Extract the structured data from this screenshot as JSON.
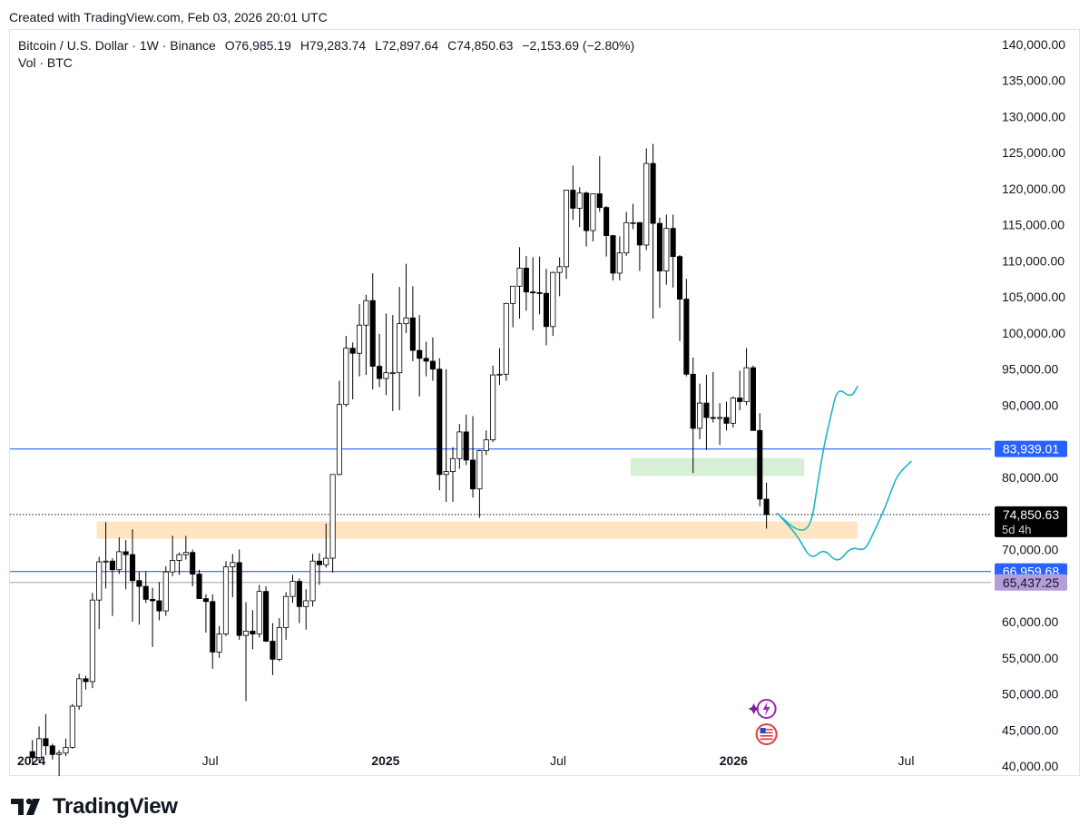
{
  "header": {
    "created_text": "Created with TradingView.com, Feb 03, 2026 20:01 UTC"
  },
  "legend": {
    "symbol": "Bitcoin / U.S. Dollar · 1W · Binance",
    "open": "O76,985.19",
    "high": "H79,283.74",
    "low": "L72,897.64",
    "close": "C74,850.63",
    "change": "−2,153.69 (−2.80%)",
    "volume_label": "Vol · BTC"
  },
  "footer": {
    "brand": "TradingView"
  },
  "colors": {
    "up_body": "#ffffff",
    "down_body": "#000000",
    "candle_outline": "#000000",
    "horizontal_line": "#2962ff",
    "grey_line": "#b2b5be",
    "orange_zone": "#ffe5c2",
    "green_zone": "#d6efd6",
    "projection": "#1ab6c8",
    "last_price_bg": "#000000",
    "level_blue_bg": "#2962ff",
    "level_purple_bg": "#b39ddb"
  },
  "chart_data": {
    "type": "candlestick",
    "title": "Bitcoin / U.S. Dollar · 1W · Binance",
    "y_axis": {
      "ticks": [
        140000,
        135000,
        130000,
        125000,
        120000,
        115000,
        110000,
        105000,
        100000,
        95000,
        90000,
        80000,
        70000,
        60000,
        55000,
        50000,
        45000,
        40000
      ],
      "tick_labels": [
        "140,000.00",
        "135,000.00",
        "130,000.00",
        "125,000.00",
        "120,000.00",
        "115,000.00",
        "110,000.00",
        "105,000.00",
        "100,000.00",
        "95,000.00",
        "90,000.00",
        "80,000.00",
        "70,000.00",
        "60,000.00",
        "55,000.00",
        "50,000.00",
        "45,000.00",
        "40,000.00"
      ],
      "ylim": [
        39000,
        142000
      ]
    },
    "x_axis": {
      "labels": [
        {
          "date": "2024-01-01",
          "text": "2024",
          "bold": true
        },
        {
          "date": "2024-07-01",
          "text": "Jul",
          "bold": false
        },
        {
          "date": "2025-01-01",
          "text": "2025",
          "bold": true
        },
        {
          "date": "2025-07-01",
          "text": "Jul",
          "bold": false
        },
        {
          "date": "2026-01-01",
          "text": "2026",
          "bold": true
        },
        {
          "date": "2026-07-01",
          "text": "Jul",
          "bold": false
        }
      ],
      "xlim": [
        "2023-12-04",
        "2026-09-28"
      ]
    },
    "price_levels": [
      {
        "price": 83939.01,
        "label": "83,939.01",
        "style": "blue-line"
      },
      {
        "price": 66959.68,
        "label": "66,959.68",
        "style": "blue-line"
      },
      {
        "price": 65437.25,
        "label": "65,437.25",
        "style": "grey-line"
      }
    ],
    "last_price": {
      "price": 74850.63,
      "label": "74,850.63",
      "countdown": "5d 4h"
    },
    "zones": [
      {
        "kind": "orange-support",
        "date_from": "2024-03-04",
        "date_to": "2026-05-11",
        "price_low": 71500,
        "price_high": 73900
      },
      {
        "kind": "green-resistance",
        "date_from": "2025-09-15",
        "date_to": "2026-03-16",
        "price_low": 80200,
        "price_high": 82700
      }
    ],
    "projections": [
      {
        "name": "path-a",
        "points": [
          [
            "2026-02-16",
            75000
          ],
          [
            "2026-03-09",
            72500
          ],
          [
            "2026-03-23",
            73000
          ],
          [
            "2026-03-30",
            79000
          ],
          [
            "2026-04-06",
            84500
          ],
          [
            "2026-04-13",
            88500
          ],
          [
            "2026-04-20",
            92500
          ],
          [
            "2026-05-04",
            91000
          ],
          [
            "2026-05-11",
            92600
          ]
        ]
      },
      {
        "name": "path-b",
        "points": [
          [
            "2026-02-16",
            75000
          ],
          [
            "2026-03-09",
            72000
          ],
          [
            "2026-03-23",
            68500
          ],
          [
            "2026-04-06",
            70200
          ],
          [
            "2026-04-20",
            68000
          ],
          [
            "2026-05-04",
            70400
          ],
          [
            "2026-05-18",
            69800
          ],
          [
            "2026-05-25",
            71500
          ],
          [
            "2026-06-08",
            75500
          ],
          [
            "2026-06-15",
            78000
          ],
          [
            "2026-06-22",
            80400
          ],
          [
            "2026-07-06",
            82200
          ]
        ]
      }
    ],
    "series": [
      {
        "name": "BTCUSD",
        "candles": [
          [
            "2023-12-25",
            42000,
            43600,
            40200,
            41200
          ],
          [
            "2024-01-01",
            41200,
            45500,
            40600,
            43800
          ],
          [
            "2024-01-08",
            43800,
            47200,
            41500,
            42800
          ],
          [
            "2024-01-15",
            42800,
            43100,
            40900,
            41600
          ],
          [
            "2024-01-22",
            41600,
            42200,
            38600,
            41800
          ],
          [
            "2024-01-29",
            41800,
            43800,
            41400,
            42600
          ],
          [
            "2024-02-05",
            42600,
            48600,
            42400,
            48300
          ],
          [
            "2024-02-12",
            48300,
            52800,
            47800,
            52100
          ],
          [
            "2024-02-19",
            52100,
            52500,
            50600,
            51700
          ],
          [
            "2024-02-26",
            51700,
            64000,
            50800,
            63000
          ],
          [
            "2024-03-04",
            63000,
            69000,
            59000,
            68300
          ],
          [
            "2024-03-11",
            68300,
            73800,
            64600,
            68400
          ],
          [
            "2024-03-18",
            68400,
            68800,
            60800,
            67200
          ],
          [
            "2024-03-25",
            67200,
            71700,
            66600,
            69700
          ],
          [
            "2024-04-01",
            69700,
            71300,
            64500,
            69300
          ],
          [
            "2024-04-08",
            69300,
            72800,
            60000,
            65700
          ],
          [
            "2024-04-15",
            65700,
            66900,
            59600,
            64900
          ],
          [
            "2024-04-22",
            64900,
            67000,
            62600,
            63100
          ],
          [
            "2024-04-29",
            63100,
            64700,
            56500,
            62900
          ],
          [
            "2024-05-06",
            62900,
            65500,
            60200,
            61500
          ],
          [
            "2024-05-13",
            61500,
            67700,
            60800,
            66900
          ],
          [
            "2024-05-20",
            66900,
            71900,
            66300,
            68500
          ],
          [
            "2024-05-27",
            68500,
            69600,
            66500,
            69300
          ],
          [
            "2024-06-03",
            69300,
            71900,
            68600,
            69600
          ],
          [
            "2024-06-10",
            69600,
            70000,
            64900,
            66600
          ],
          [
            "2024-06-17",
            66600,
            67200,
            63300,
            63200
          ],
          [
            "2024-06-24",
            63200,
            63800,
            58500,
            62800
          ],
          [
            "2024-07-01",
            62800,
            63800,
            53500,
            55800
          ],
          [
            "2024-07-08",
            55800,
            59400,
            55000,
            58300
          ],
          [
            "2024-07-15",
            58300,
            68400,
            58000,
            67600
          ],
          [
            "2024-07-22",
            67600,
            69400,
            63400,
            68200
          ],
          [
            "2024-07-29",
            68200,
            70000,
            57500,
            58100
          ],
          [
            "2024-08-05",
            58100,
            62700,
            49000,
            58700
          ],
          [
            "2024-08-12",
            58700,
            61600,
            56200,
            58300
          ],
          [
            "2024-08-19",
            58300,
            65100,
            57800,
            64200
          ],
          [
            "2024-08-26",
            64200,
            64900,
            57200,
            57300
          ],
          [
            "2024-09-02",
            57300,
            59800,
            52600,
            54800
          ],
          [
            "2024-09-09",
            54800,
            60500,
            54500,
            59200
          ],
          [
            "2024-09-16",
            59200,
            64100,
            57500,
            63500
          ],
          [
            "2024-09-23",
            63500,
            66500,
            62600,
            65600
          ],
          [
            "2024-09-30",
            65600,
            66000,
            59800,
            62100
          ],
          [
            "2024-10-07",
            62100,
            64500,
            58900,
            62900
          ],
          [
            "2024-10-14",
            62900,
            69400,
            62100,
            68400
          ],
          [
            "2024-10-21",
            68400,
            69500,
            65100,
            67900
          ],
          [
            "2024-10-28",
            67900,
            73600,
            67500,
            68800
          ],
          [
            "2024-11-04",
            68800,
            80200,
            66800,
            80400
          ],
          [
            "2024-11-11",
            80400,
            93400,
            80300,
            90100
          ],
          [
            "2024-11-18",
            90100,
            99600,
            89800,
            97900
          ],
          [
            "2024-11-25",
            97900,
            98700,
            90800,
            97200
          ],
          [
            "2024-12-02",
            97200,
            104000,
            94000,
            101100
          ],
          [
            "2024-12-09",
            101100,
            105300,
            94200,
            104500
          ],
          [
            "2024-12-16",
            104500,
            108300,
            92200,
            95400
          ],
          [
            "2024-12-23",
            95400,
            99900,
            92500,
            93700
          ],
          [
            "2024-12-30",
            93700,
            102700,
            91400,
            94500
          ],
          [
            "2025-01-06",
            94500,
            102500,
            89200,
            94500
          ],
          [
            "2025-01-13",
            94500,
            106400,
            89300,
            101300
          ],
          [
            "2025-01-20",
            101300,
            109600,
            100000,
            102100
          ],
          [
            "2025-01-27",
            102100,
            106500,
            96100,
            97600
          ],
          [
            "2025-02-03",
            97600,
            102500,
            91200,
            96500
          ],
          [
            "2025-02-10",
            96500,
            98800,
            94000,
            96100
          ],
          [
            "2025-02-17",
            96100,
            99400,
            93400,
            95000
          ],
          [
            "2025-02-24",
            95000,
            96500,
            78200,
            80400
          ],
          [
            "2025-03-03",
            80400,
            95000,
            76600,
            80800
          ],
          [
            "2025-03-10",
            80800,
            84200,
            76600,
            82600
          ],
          [
            "2025-03-17",
            82600,
            87400,
            81200,
            86300
          ],
          [
            "2025-03-24",
            86300,
            88700,
            81700,
            82400
          ],
          [
            "2025-03-31",
            82400,
            88500,
            77200,
            78400
          ],
          [
            "2025-04-07",
            78400,
            83800,
            74400,
            83700
          ],
          [
            "2025-04-14",
            83700,
            86500,
            83100,
            85200
          ],
          [
            "2025-04-21",
            85200,
            95500,
            84900,
            94200
          ],
          [
            "2025-04-28",
            94200,
            97900,
            92800,
            94300
          ],
          [
            "2025-05-05",
            94300,
            104200,
            93400,
            104100
          ],
          [
            "2025-05-12",
            104100,
            105800,
            100800,
            106500
          ],
          [
            "2025-05-19",
            106500,
            111900,
            102000,
            109000
          ],
          [
            "2025-05-26",
            109000,
            110700,
            103100,
            105700
          ],
          [
            "2025-06-02",
            105700,
            110500,
            100400,
            105600
          ],
          [
            "2025-06-09",
            105600,
            110600,
            102600,
            105500
          ],
          [
            "2025-06-16",
            105500,
            108900,
            98300,
            100900
          ],
          [
            "2025-06-23",
            100900,
            108500,
            99600,
            108400
          ],
          [
            "2025-06-30",
            108400,
            110500,
            105100,
            109200
          ],
          [
            "2025-07-07",
            109200,
            119500,
            107500,
            119800
          ],
          [
            "2025-07-14",
            119800,
            123200,
            115700,
            117300
          ],
          [
            "2025-07-21",
            117300,
            120200,
            114700,
            119400
          ],
          [
            "2025-07-28",
            119400,
            119600,
            112000,
            114200
          ],
          [
            "2025-08-04",
            114200,
            119300,
            112700,
            119300
          ],
          [
            "2025-08-11",
            119300,
            124500,
            116800,
            117400
          ],
          [
            "2025-08-18",
            117400,
            117600,
            110600,
            113500
          ],
          [
            "2025-08-25",
            113500,
            113600,
            107300,
            108300
          ],
          [
            "2025-09-01",
            108300,
            113400,
            107300,
            111100
          ],
          [
            "2025-09-08",
            111100,
            116800,
            110700,
            115300
          ],
          [
            "2025-09-15",
            115300,
            117900,
            114400,
            115300
          ],
          [
            "2025-09-22",
            115300,
            115400,
            108600,
            112200
          ],
          [
            "2025-09-29",
            112200,
            125600,
            111500,
            123500
          ],
          [
            "2025-10-06",
            123500,
            126200,
            102000,
            115200
          ],
          [
            "2025-10-13",
            115200,
            116000,
            103500,
            108600
          ],
          [
            "2025-10-20",
            108600,
            116400,
            106700,
            114500
          ],
          [
            "2025-10-27",
            114500,
            116400,
            106300,
            110600
          ],
          [
            "2025-11-03",
            110600,
            110800,
            98900,
            104700
          ],
          [
            "2025-11-10",
            104700,
            107500,
            94000,
            94300
          ],
          [
            "2025-11-17",
            94300,
            96600,
            80600,
            86800
          ],
          [
            "2025-11-24",
            86800,
            93000,
            85300,
            90300
          ],
          [
            "2025-12-01",
            90300,
            94200,
            83800,
            88300
          ],
          [
            "2025-12-08",
            88300,
            94600,
            87600,
            88200
          ],
          [
            "2025-12-15",
            88200,
            90300,
            84500,
            88300
          ],
          [
            "2025-12-22",
            88300,
            90500,
            86500,
            87500
          ],
          [
            "2025-12-29",
            87500,
            91200,
            86900,
            91000
          ],
          [
            "2026-01-05",
            91000,
            94800,
            89300,
            90500
          ],
          [
            "2026-01-12",
            90500,
            97900,
            90000,
            95200
          ],
          [
            "2026-01-19",
            95200,
            95500,
            86700,
            86500
          ],
          [
            "2026-01-26",
            86500,
            88900,
            76000,
            77000
          ],
          [
            "2026-02-02",
            76985.19,
            79283.74,
            72897.64,
            74850.63
          ]
        ]
      }
    ]
  }
}
